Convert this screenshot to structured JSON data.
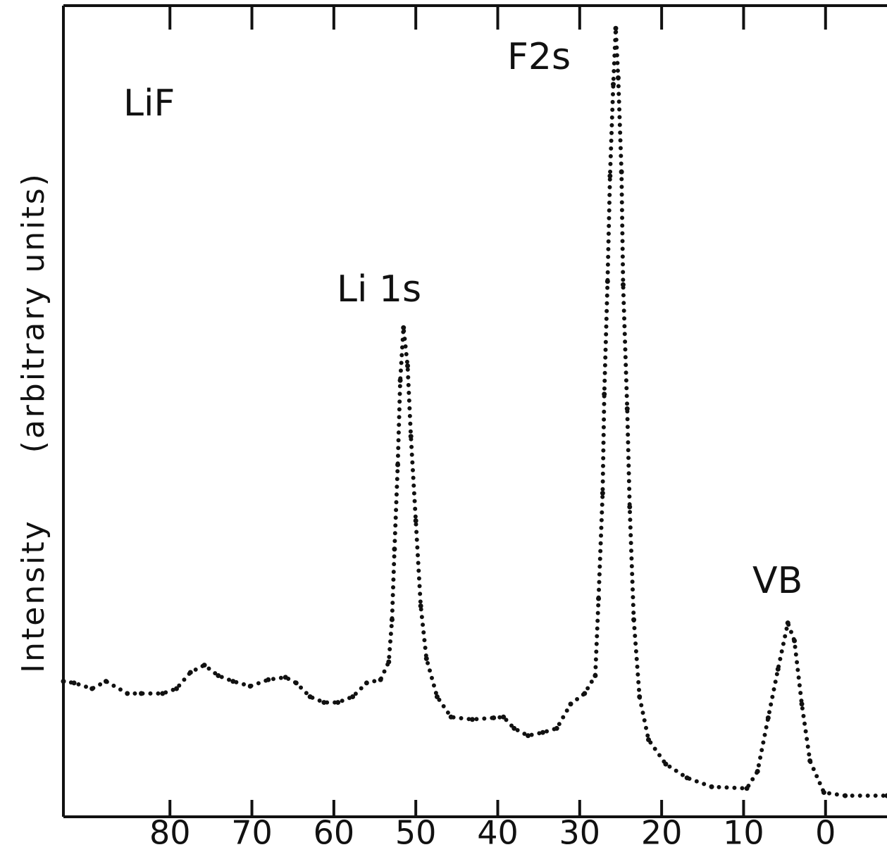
{
  "chart_data": {
    "type": "line",
    "x_label": "Intensity  (arbitrary units)",
    "annotations": [
      "LiF",
      "F2s",
      "Li 1s",
      "VB"
    ],
    "xlim": [
      93,
      -7.5
    ],
    "ylim": [
      0,
      100
    ],
    "xticks": [
      80,
      70,
      60,
      50,
      40,
      30,
      20,
      10,
      0
    ],
    "series": [
      {
        "color": "#111111",
        "x": [
          93.0,
          91.7,
          89.5,
          87.8,
          85.2,
          83.5,
          80.9,
          79.2,
          77.5,
          75.8,
          74.1,
          72.3,
          70.2,
          68.0,
          65.9,
          64.6,
          62.9,
          61.2,
          59.5,
          57.7,
          56.0,
          54.3,
          53.3,
          52.9,
          52.6,
          52.2,
          51.9,
          51.5,
          51.0,
          50.6,
          50.0,
          49.4,
          48.7,
          47.4,
          45.7,
          43.1,
          40.5,
          39.3,
          38.0,
          36.3,
          34.5,
          32.8,
          31.1,
          29.4,
          28.1,
          27.7,
          27.2,
          27.0,
          26.6,
          26.3,
          25.9,
          25.6,
          25.3,
          24.9,
          24.7,
          24.2,
          23.9,
          23.4,
          22.7,
          21.6,
          19.5,
          16.9,
          13.9,
          9.6,
          8.3,
          7.0,
          5.8,
          4.6,
          3.8,
          2.9,
          1.9,
          0.2,
          -2.4,
          -7.5
        ],
        "values": [
          16.7,
          16.5,
          15.8,
          16.7,
          15.2,
          15.2,
          15.2,
          15.8,
          17.8,
          18.7,
          17.4,
          16.7,
          16.1,
          16.9,
          17.2,
          16.5,
          14.8,
          14.1,
          14.1,
          14.8,
          16.5,
          16.9,
          19.1,
          24.3,
          33.0,
          43.4,
          53.8,
          60.3,
          55.6,
          46.9,
          36.5,
          26.0,
          19.5,
          14.8,
          12.3,
          12.0,
          12.2,
          12.3,
          10.9,
          10.0,
          10.4,
          10.9,
          13.9,
          15.2,
          17.4,
          26.9,
          39.9,
          52.1,
          66.0,
          79.0,
          90.3,
          97.2,
          91.1,
          79.5,
          65.6,
          50.3,
          38.2,
          24.3,
          14.8,
          9.5,
          6.5,
          4.8,
          3.7,
          3.5,
          5.6,
          12.2,
          18.2,
          23.9,
          21.7,
          13.9,
          6.9,
          3.0,
          2.6,
          2.6
        ]
      }
    ]
  }
}
